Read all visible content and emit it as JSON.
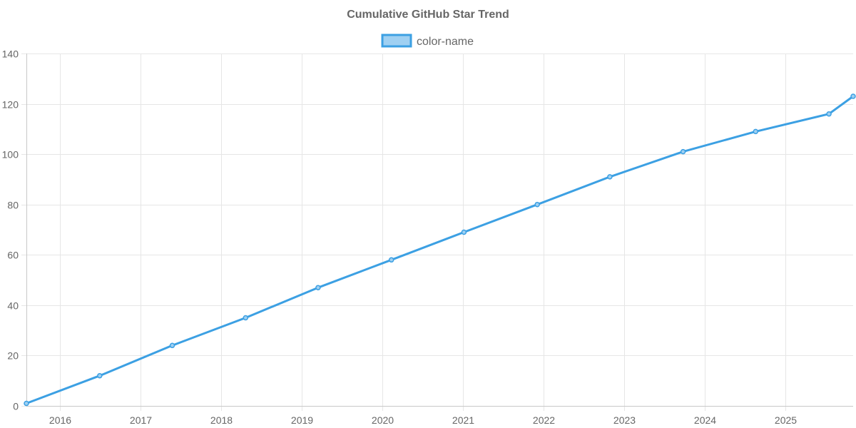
{
  "chart_data": {
    "type": "line",
    "title": "Cumulative GitHub Star Trend",
    "xlabel": "",
    "ylabel": "",
    "legend_position": "top-center",
    "grid": true,
    "x_ticks": [
      "2016",
      "2017",
      "2018",
      "2019",
      "2020",
      "2021",
      "2022",
      "2023",
      "2024",
      "2025"
    ],
    "y_ticks": [
      0,
      20,
      40,
      60,
      80,
      100,
      120,
      140
    ],
    "ylim": [
      0,
      140
    ],
    "xlim": [
      2015.58,
      2025.84
    ],
    "series": [
      {
        "name": "color-name",
        "line_color": "#3ca0e3",
        "fill_color": "#9fd0f2",
        "x": [
          2015.58,
          2016.49,
          2017.39,
          2018.3,
          2019.2,
          2020.11,
          2021.01,
          2021.92,
          2022.82,
          2023.73,
          2024.63,
          2025.54,
          2025.84
        ],
        "values": [
          1,
          12,
          24,
          35,
          47,
          58,
          69,
          80,
          91,
          101,
          109,
          116,
          123
        ]
      }
    ]
  }
}
